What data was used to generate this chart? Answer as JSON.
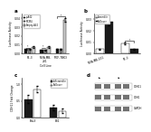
{
  "panel_a": {
    "title": "a",
    "groups": [
      "P1-3",
      "MDA-MB-231\n231",
      "MCF-7BK3"
    ],
    "group_labels": [
      "P1-3",
      "MDA-MB-\n231",
      "MCF-7BK3"
    ],
    "series": [
      "p-A42",
      "MCM4",
      "Empty-A42"
    ],
    "colors": [
      "#1a1a1a",
      "#888888",
      "#cccccc"
    ],
    "values": [
      [
        0.005,
        0.004,
        0.005
      ],
      [
        0.005,
        0.004,
        0.005
      ],
      [
        0.007,
        0.007,
        0.038
      ]
    ],
    "errors": [
      [
        0.0005,
        0.0005,
        0.0005
      ],
      [
        0.0005,
        0.0005,
        0.0005
      ],
      [
        0.001,
        0.001,
        0.002
      ]
    ],
    "ylabel": "Luciferase Activity",
    "xlabel": "Cell Line",
    "ylim": [
      0,
      0.045
    ],
    "yticks": [
      0.0,
      0.01,
      0.02,
      0.03,
      0.04
    ]
  },
  "panel_b": {
    "title": "b",
    "groups": [
      "MDA-MB-231",
      "P1-3"
    ],
    "series": [
      "Scramble",
      "ShDover"
    ],
    "colors": [
      "#ffffff",
      "#1a1a1a"
    ],
    "values": [
      [
        0.004,
        0.009
      ],
      [
        0.028,
        0.004
      ]
    ],
    "errors": [
      [
        0.0005,
        0.001
      ],
      [
        0.003,
        0.0005
      ]
    ],
    "ylabel": "Luciferase Activity",
    "ylim": [
      0,
      0.035
    ],
    "yticks": [
      0.0,
      0.01,
      0.02,
      0.03
    ]
  },
  "panel_c": {
    "title": "c",
    "groups": [
      "BaL3",
      "LB1"
    ],
    "series": [
      "shScramble",
      "ShDover"
    ],
    "colors": [
      "#1a1a1a",
      "#ffffff"
    ],
    "values": [
      [
        0.55,
        0.3
      ],
      [
        0.85,
        0.2
      ]
    ],
    "errors": [
      [
        0.12,
        0.08
      ],
      [
        0.1,
        0.06
      ]
    ],
    "ylabel": "CDH11 Fold Change",
    "ylim": [
      0,
      1.2
    ],
    "yticks": [
      0.0,
      0.5,
      1.0
    ]
  },
  "panel_d": {
    "title": "d",
    "row_labels": [
      "CDH11",
      "CDH1",
      "GAPDH"
    ],
    "n_cols": 4,
    "col_groups": [
      2,
      2
    ],
    "band_color": "#555555",
    "bg_color": "#dddddd"
  },
  "background_color": "#ffffff",
  "text_color": "#000000"
}
